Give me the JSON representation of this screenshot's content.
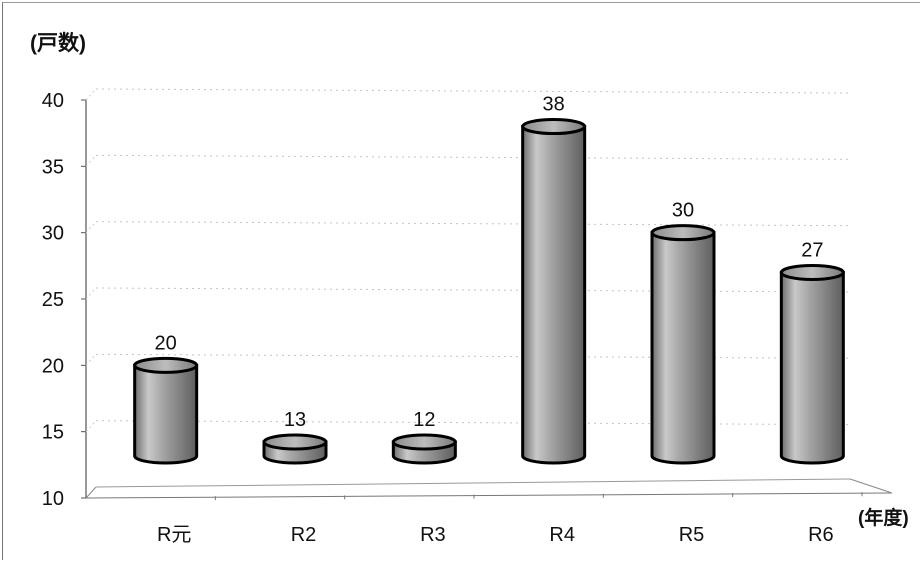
{
  "chart_data": {
    "type": "bar",
    "style": "3d-cylinder",
    "ylabel": "(戸数)",
    "xlabel": "(年度)",
    "categories": [
      "R元",
      "R2",
      "R3",
      "R4",
      "R5",
      "R6"
    ],
    "values": [
      20,
      13,
      12,
      38,
      30,
      27
    ],
    "ylim": [
      10,
      40
    ],
    "yticks": [
      10,
      15,
      20,
      25,
      30,
      35,
      40
    ],
    "grid": true,
    "legend": "none",
    "colors": {
      "bar": "#9a9a9a",
      "bar_edge": "#000000",
      "grid": "#bbbbbb",
      "axis": "#888888"
    }
  }
}
